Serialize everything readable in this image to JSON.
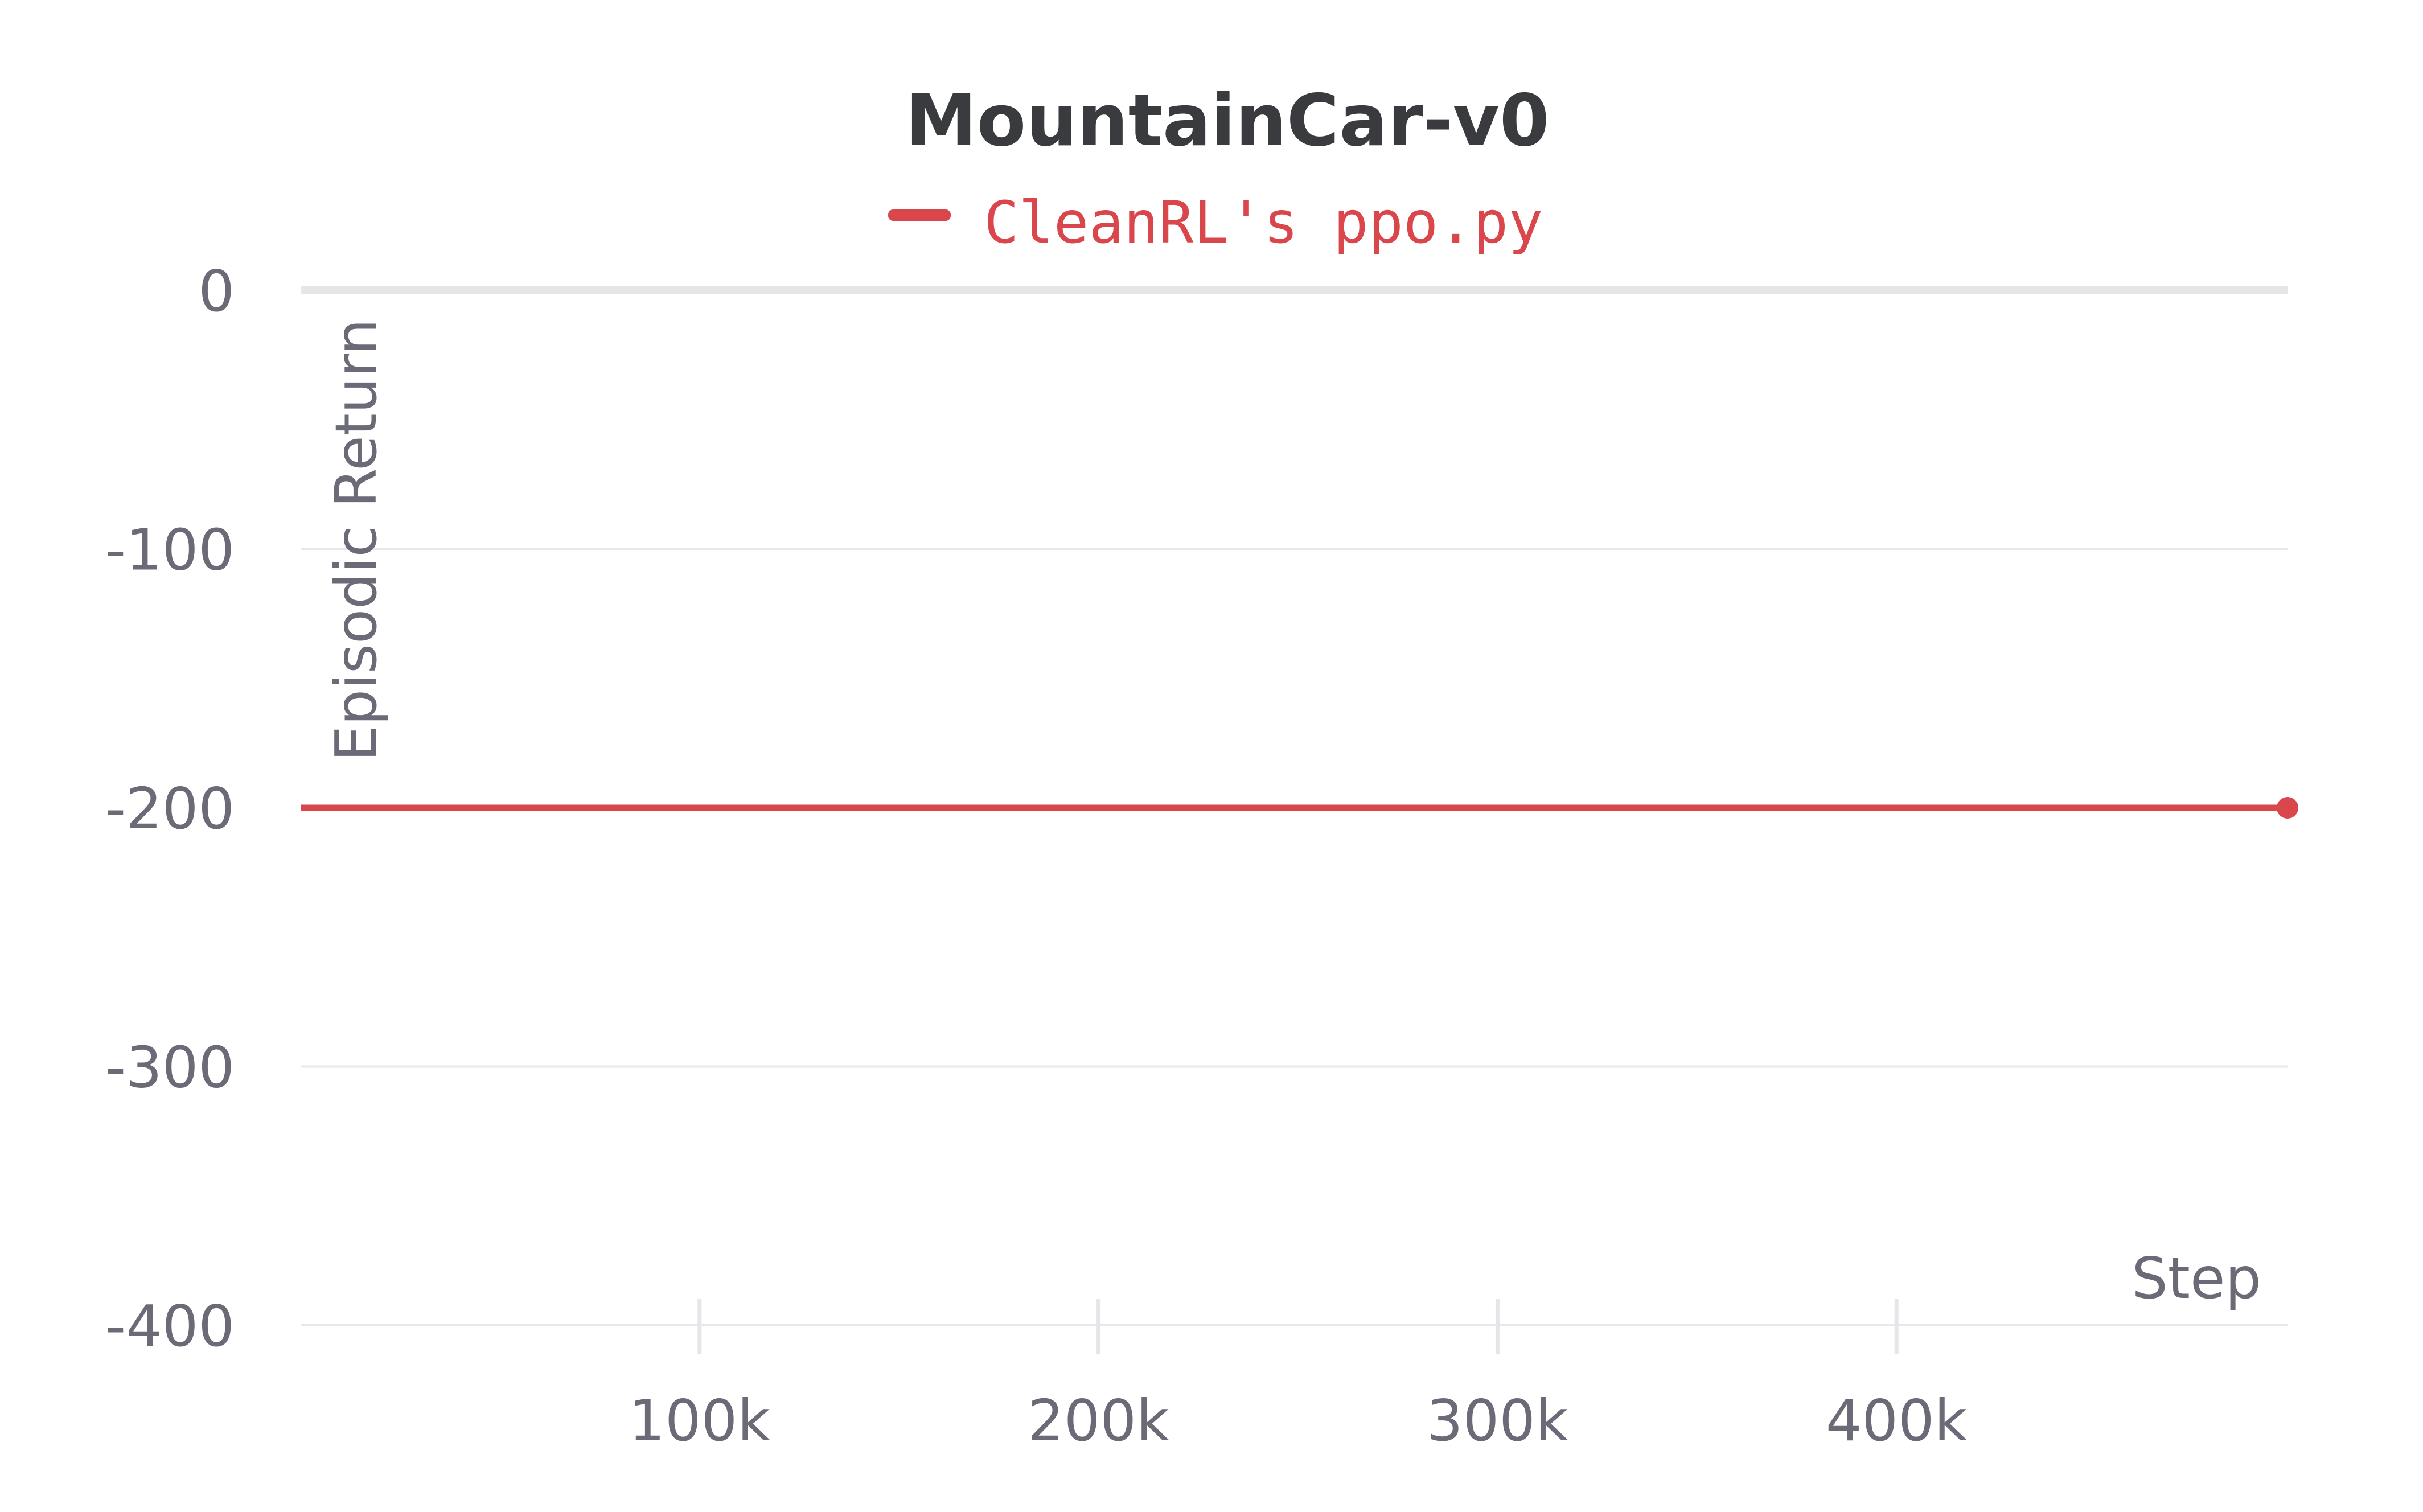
{
  "chart_data": {
    "type": "line",
    "title": "MountainCar-v0",
    "xlabel": "Step",
    "ylabel": "Episodic Return",
    "xlim": [
      0,
      498000
    ],
    "ylim": [
      -400,
      0
    ],
    "x_ticks": [
      100000,
      200000,
      300000,
      400000
    ],
    "x_tick_labels": [
      "100k",
      "200k",
      "300k",
      "400k"
    ],
    "y_ticks": [
      0,
      -100,
      -200,
      -300,
      -400
    ],
    "y_tick_labels": [
      "0",
      "-100",
      "-200",
      "-300",
      "-400"
    ],
    "grid": "horizontal",
    "legend": "top-center",
    "series": [
      {
        "name": "CleanRL's ppo.py",
        "color": "#d9464b",
        "x": [
          0,
          498000
        ],
        "y": [
          -200,
          -200
        ]
      }
    ]
  }
}
